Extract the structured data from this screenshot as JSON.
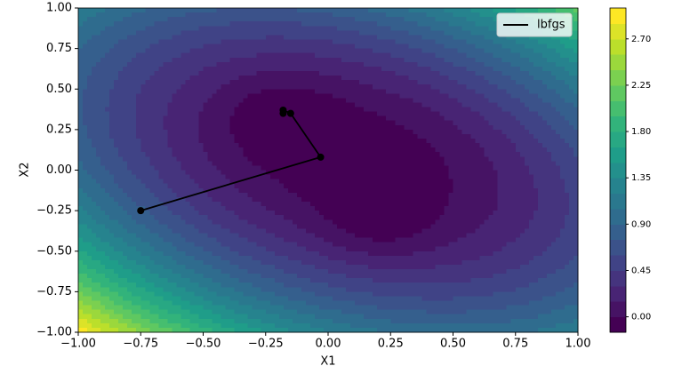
{
  "chart_data": {
    "type": "line",
    "x_label": "X1",
    "y_label": "X2",
    "xlim": [
      -1,
      1
    ],
    "ylim": [
      -1,
      1
    ],
    "xticks": [
      {
        "value": -1,
        "label": "−1.00"
      },
      {
        "value": -0.75,
        "label": "−0.75"
      },
      {
        "value": -0.5,
        "label": "−0.50"
      },
      {
        "value": -0.25,
        "label": "−0.25"
      },
      {
        "value": 0,
        "label": "0.00"
      },
      0.25,
      {
        "value": 0.5,
        "label": "0.50"
      },
      0.75,
      {
        "value": 1,
        "label": "1.00"
      }
    ],
    "yticks": [
      {
        "value": -1,
        "label": "−1.00"
      },
      {
        "value": -0.75,
        "label": "−0.75"
      },
      {
        "value": -0.5,
        "label": "−0.50"
      },
      {
        "value": -0.25,
        "label": "−0.25"
      },
      {
        "value": 0,
        "label": "0.00"
      },
      0.25,
      {
        "value": 0.5,
        "label": "0.50"
      },
      0.75,
      {
        "value": 1,
        "label": "1.00"
      }
    ],
    "x": [
      -0.75,
      -0.03,
      -0.15,
      -0.18,
      -0.18
    ],
    "series": [
      {
        "name": "lbfgs",
        "color": "#000000",
        "values": [
          -0.25,
          0.08,
          0.35,
          0.37,
          0.35
        ]
      }
    ],
    "legend": "upper right",
    "colorbar": {
      "lim": [
        -0.15,
        3.0
      ],
      "ticks": [
        {
          "value": 0,
          "label": "0.00"
        },
        0.45,
        {
          "value": 0.9,
          "label": "0.90"
        },
        1.35,
        {
          "value": 1.8,
          "label": "1.80"
        },
        {
          "value": 2.25,
          "label": "2.25"
        },
        {
          "value": 2.7,
          "label": "2.70"
        }
      ]
    }
  }
}
